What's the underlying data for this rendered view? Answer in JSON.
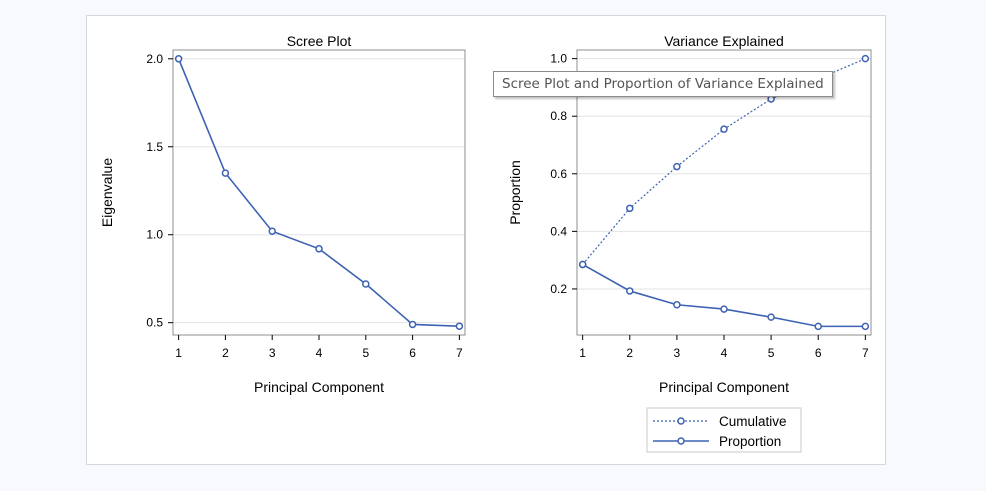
{
  "colors": {
    "series": "#3d62b3",
    "grid": "#e3e3e3",
    "frame": "#8f8f8f"
  },
  "tooltip": "Scree Plot and Proportion of Variance Explained",
  "chart_data": [
    {
      "type": "line",
      "title": "Scree Plot",
      "xlabel": "Principal Component",
      "ylabel": "Eigenvalue",
      "x": [
        1,
        2,
        3,
        4,
        5,
        6,
        7
      ],
      "xticks": [
        "1",
        "2",
        "3",
        "4",
        "5",
        "6",
        "7"
      ],
      "yticks": [
        "0.5",
        "1.0",
        "1.5",
        "2.0"
      ],
      "series": [
        {
          "values": [
            2.0,
            1.35,
            1.02,
            0.92,
            0.72,
            0.49,
            0.48
          ]
        }
      ],
      "grid": true,
      "markers": "circle"
    },
    {
      "type": "line",
      "title": "Variance Explained",
      "xlabel": "Principal Component",
      "ylabel": "Proportion",
      "x": [
        1,
        2,
        3,
        4,
        5,
        6,
        7
      ],
      "xticks": [
        "1",
        "2",
        "3",
        "4",
        "5",
        "6",
        "7"
      ],
      "yticks": [
        "0.2",
        "0.4",
        "0.6",
        "0.8",
        "1.0"
      ],
      "series": [
        {
          "name": "Cumulative",
          "style": "dotted",
          "values": [
            0.285,
            0.48,
            0.625,
            0.755,
            0.86,
            0.93,
            1.0
          ]
        },
        {
          "name": "Proportion",
          "style": "solid",
          "values": [
            0.285,
            0.193,
            0.145,
            0.13,
            0.102,
            0.07,
            0.07
          ]
        }
      ],
      "legend": "bottom",
      "grid": true,
      "markers": "circle"
    }
  ]
}
